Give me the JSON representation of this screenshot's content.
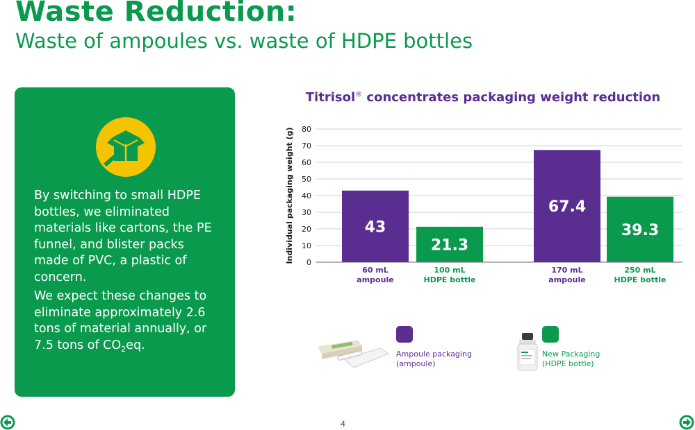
{
  "header": {
    "title": "Waste Reduction:",
    "subtitle": "Waste of ampoules vs. waste of HDPE bottles"
  },
  "card": {
    "icon": "open-box-icon",
    "paragraph1": "By switching to small HDPE bottles, we eliminated materials like cartons, the PE funnel, and blister packs made of PVC, a plastic of concern.",
    "paragraph2_before_sub": "We expect these changes to eliminate approximately 2.6 tons of material annually, or 7.5 tons of CO",
    "paragraph2_sub": "2",
    "paragraph2_after_sub": "eq."
  },
  "chart_title": {
    "main": "Titrisol",
    "mark": "®",
    "rest": " concentrates packaging weight reduction"
  },
  "chart_data": {
    "type": "bar",
    "title": "Titrisol® concentrates packaging weight reduction",
    "ylabel": "Individual packaging weight (g)",
    "ylim": [
      0,
      80
    ],
    "yticks": [
      0,
      10,
      20,
      30,
      40,
      50,
      60,
      70,
      80
    ],
    "grid": true,
    "categories": [
      [
        "60 mL",
        "ampoule"
      ],
      [
        "100 mL",
        "HDPE bottle"
      ],
      [
        "170 mL",
        "ampoule"
      ],
      [
        "250 mL",
        "HDPE bottle"
      ]
    ],
    "values": [
      43,
      21.3,
      67.4,
      39.3
    ],
    "value_labels": [
      "43",
      "21.3",
      "67.4",
      "39.3"
    ],
    "bar_colors": [
      "#5a2d91",
      "#0a9a4e",
      "#5a2d91",
      "#0a9a4e"
    ]
  },
  "legend": [
    {
      "lines": [
        "Ampoule packaging",
        "(ampoule)"
      ],
      "color": "#5a2d91",
      "image": "ampoule-package-image"
    },
    {
      "lines": [
        "New Packaging",
        "(HDPE bottle)"
      ],
      "color": "#0a9a4e",
      "image": "hdpe-bottle-image"
    }
  ],
  "footer": {
    "page_number": "4",
    "prev_icon": "back-arrow-icon",
    "next_icon": "forward-arrow-icon"
  },
  "colors": {
    "green": "#0a9a4e",
    "purple": "#5a2d91",
    "icon_yellow": "#f5c400"
  }
}
